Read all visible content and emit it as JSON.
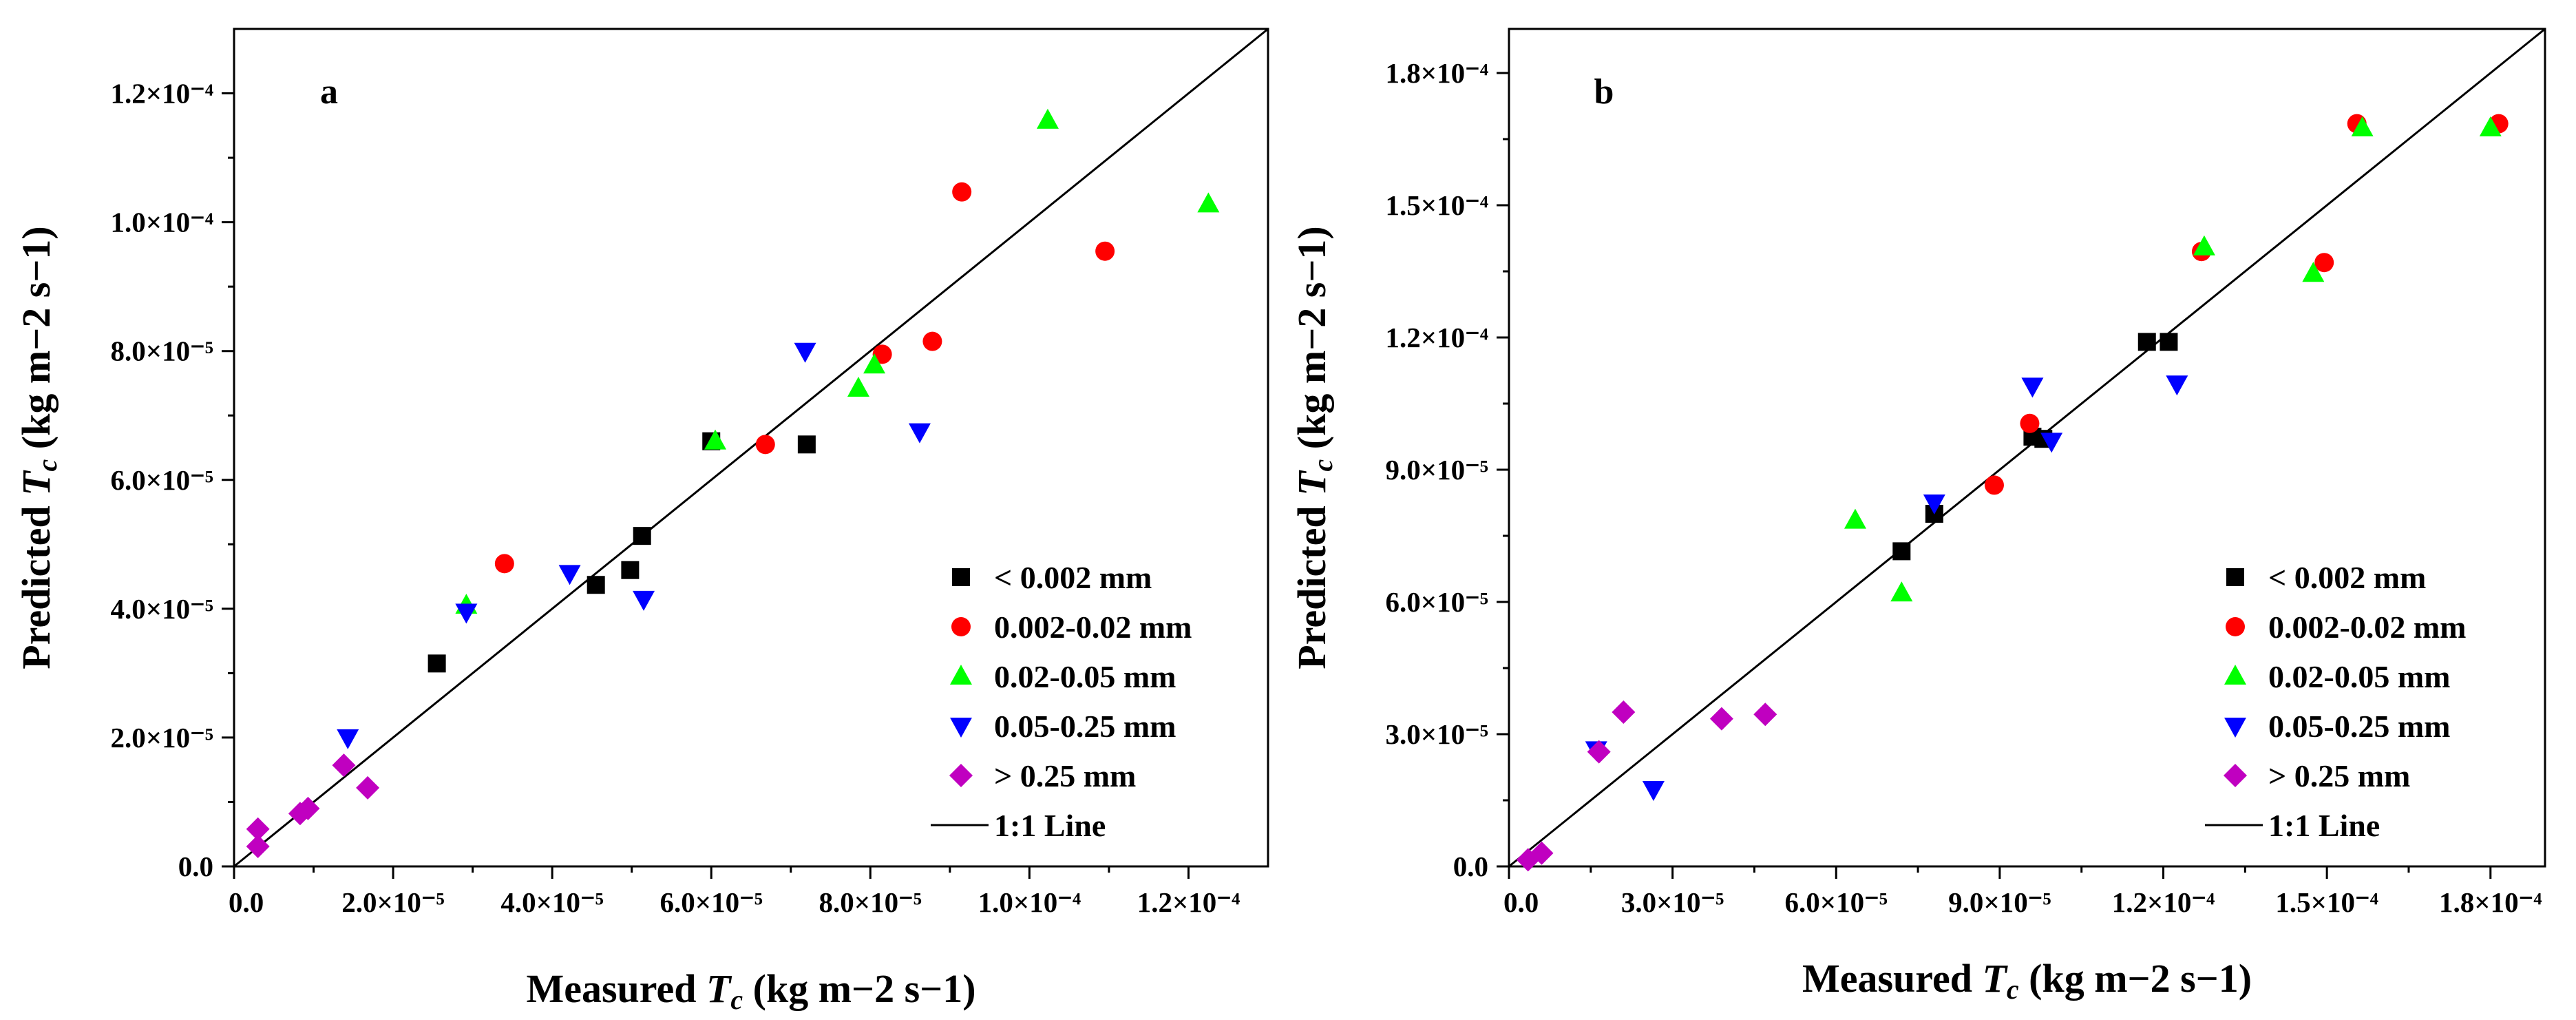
{
  "chart_data": [
    {
      "type": "scatter",
      "panel_label": "a",
      "xlabel": {
        "prefix": "Measured ",
        "var": "T",
        "sub": "c",
        "units": " (kg m−2 s−1)"
      },
      "ylabel": {
        "prefix": "Predicted ",
        "var": "T",
        "sub": "c",
        "units": " (kg m−2 s−1)"
      },
      "xlim": [
        0,
        0.00013
      ],
      "ylim": [
        0,
        0.00013
      ],
      "xticks": [
        {
          "value": 0,
          "label": "0.0"
        },
        {
          "value": 2e-05,
          "label": "2.0×10⁻⁵"
        },
        {
          "value": 4e-05,
          "label": "4.0×10⁻⁵"
        },
        {
          "value": 6e-05,
          "label": "6.0×10⁻⁵"
        },
        {
          "value": 8e-05,
          "label": "8.0×10⁻⁵"
        },
        {
          "value": 0.0001,
          "label": "1.0×10⁻⁴"
        },
        {
          "value": 0.00012,
          "label": "1.2×10⁻⁴"
        }
      ],
      "yticks": [
        {
          "value": 0,
          "label": "0.0"
        },
        {
          "value": 2e-05,
          "label": "2.0×10⁻⁵"
        },
        {
          "value": 4e-05,
          "label": "4.0×10⁻⁵"
        },
        {
          "value": 6e-05,
          "label": "6.0×10⁻⁵"
        },
        {
          "value": 8e-05,
          "label": "8.0×10⁻⁵"
        },
        {
          "value": 0.0001,
          "label": "1.0×10⁻⁴"
        },
        {
          "value": 0.00012,
          "label": "1.2×10⁻⁴"
        }
      ],
      "legend_position": "bottom-right",
      "series": [
        {
          "name": "< 0.002 mm",
          "marker": "square",
          "color": "#000000",
          "points": [
            [
              2.55e-05,
              3.15e-05
            ],
            [
              4.55e-05,
              4.37e-05
            ],
            [
              4.98e-05,
              4.6e-05
            ],
            [
              5.13e-05,
              5.13e-05
            ],
            [
              6e-05,
              6.6e-05
            ],
            [
              7.2e-05,
              6.55e-05
            ]
          ]
        },
        {
          "name": "0.002-0.02 mm",
          "marker": "circle",
          "color": "#ff0000",
          "points": [
            [
              3.4e-05,
              4.7e-05
            ],
            [
              6.68e-05,
              6.55e-05
            ],
            [
              8.15e-05,
              7.95e-05
            ],
            [
              8.78e-05,
              8.15e-05
            ],
            [
              9.15e-05,
              0.0001047
            ],
            [
              0.0001095,
              9.55e-05
            ]
          ]
        },
        {
          "name": "0.02-0.05 mm",
          "marker": "triangle-up",
          "color": "#00ff00",
          "points": [
            [
              2.92e-05,
              4.05e-05
            ],
            [
              6.05e-05,
              6.6e-05
            ],
            [
              7.85e-05,
              7.42e-05
            ],
            [
              8.05e-05,
              7.78e-05
            ],
            [
              0.0001023,
              0.0001158
            ],
            [
              0.0001225,
              0.0001028
            ]
          ]
        },
        {
          "name": "0.05-0.25 mm",
          "marker": "triangle-down",
          "color": "#0000ff",
          "points": [
            [
              1.43e-05,
              2e-05
            ],
            [
              2.92e-05,
              3.95e-05
            ],
            [
              4.22e-05,
              4.55e-05
            ],
            [
              5.15e-05,
              4.15e-05
            ],
            [
              7.18e-05,
              8e-05
            ],
            [
              8.62e-05,
              6.75e-05
            ]
          ]
        },
        {
          "name": "> 0.25 mm",
          "marker": "diamond",
          "color": "#c000c0",
          "points": [
            [
              3e-06,
              5.8e-06
            ],
            [
              3e-06,
              3.1e-06
            ],
            [
              8.3e-06,
              8.2e-06
            ],
            [
              9.3e-06,
              9e-06
            ],
            [
              1.38e-05,
              1.57e-05
            ],
            [
              1.68e-05,
              1.22e-05
            ]
          ]
        }
      ],
      "line_label": "1:1 Line"
    },
    {
      "type": "scatter",
      "panel_label": "b",
      "xlabel": {
        "prefix": "Measured ",
        "var": "T",
        "sub": "c",
        "units": " (kg m−2 s−1)"
      },
      "ylabel": {
        "prefix": "Predicted ",
        "var": "T",
        "sub": "c",
        "units": " (kg m−2 s−1)"
      },
      "xlim": [
        0,
        0.00019
      ],
      "ylim": [
        0,
        0.00019
      ],
      "xticks": [
        {
          "value": 0,
          "label": "0.0"
        },
        {
          "value": 3e-05,
          "label": "3.0×10⁻⁵"
        },
        {
          "value": 6e-05,
          "label": "6.0×10⁻⁵"
        },
        {
          "value": 9e-05,
          "label": "9.0×10⁻⁵"
        },
        {
          "value": 0.00012,
          "label": "1.2×10⁻⁴"
        },
        {
          "value": 0.00015,
          "label": "1.5×10⁻⁴"
        },
        {
          "value": 0.00018,
          "label": "1.8×10⁻⁴"
        }
      ],
      "yticks": [
        {
          "value": 0,
          "label": "0.0"
        },
        {
          "value": 3e-05,
          "label": "3.0×10⁻⁵"
        },
        {
          "value": 6e-05,
          "label": "6.0×10⁻⁵"
        },
        {
          "value": 9e-05,
          "label": "9.0×10⁻⁵"
        },
        {
          "value": 0.00012,
          "label": "1.2×10⁻⁴"
        },
        {
          "value": 0.00015,
          "label": "1.5×10⁻⁴"
        },
        {
          "value": 0.00018,
          "label": "1.8×10⁻⁴"
        }
      ],
      "legend_position": "bottom-right",
      "series": [
        {
          "name": "< 0.002 mm",
          "marker": "square",
          "color": "#000000",
          "points": [
            [
              7.2e-05,
              7.15e-05
            ],
            [
              7.8e-05,
              8e-05
            ],
            [
              9.6e-05,
              9.75e-05
            ],
            [
              9.8e-05,
              9.7e-05
            ],
            [
              0.000117,
              0.000119
            ],
            [
              0.000121,
              0.000119
            ]
          ]
        },
        {
          "name": "0.002-0.02 mm",
          "marker": "circle",
          "color": "#ff0000",
          "points": [
            [
              8.9e-05,
              8.65e-05
            ],
            [
              9.55e-05,
              0.0001005
            ],
            [
              0.000127,
              0.0001395
            ],
            [
              0.0001495,
              0.000137
            ],
            [
              0.0001555,
              0.0001685
            ],
            [
              0.0001815,
              0.0001685
            ]
          ]
        },
        {
          "name": "0.02-0.05 mm",
          "marker": "triangle-up",
          "color": "#00ff00",
          "points": [
            [
              6.35e-05,
              7.85e-05
            ],
            [
              7.2e-05,
              6.2e-05
            ],
            [
              0.0001275,
              0.0001405
            ],
            [
              0.0001475,
              0.0001345
            ],
            [
              0.0001565,
              0.0001675
            ],
            [
              0.00018,
              0.0001675
            ]
          ]
        },
        {
          "name": "0.05-0.25 mm",
          "marker": "triangle-down",
          "color": "#0000ff",
          "points": [
            [
              1.6e-05,
              2.65e-05
            ],
            [
              2.65e-05,
              1.75e-05
            ],
            [
              7.8e-05,
              8.25e-05
            ],
            [
              9.6e-05,
              0.000109
            ],
            [
              9.95e-05,
              9.65e-05
            ],
            [
              0.0001225,
              0.0001095
            ]
          ]
        },
        {
          "name": "> 0.25 mm",
          "marker": "diamond",
          "color": "#c000c0",
          "points": [
            [
              3.5e-06,
              1.5e-06
            ],
            [
              6e-06,
              3e-06
            ],
            [
              1.65e-05,
              2.6e-05
            ],
            [
              2.1e-05,
              3.5e-05
            ],
            [
              3.9e-05,
              3.35e-05
            ],
            [
              4.7e-05,
              3.45e-05
            ]
          ]
        }
      ],
      "line_label": "1:1 Line"
    }
  ]
}
